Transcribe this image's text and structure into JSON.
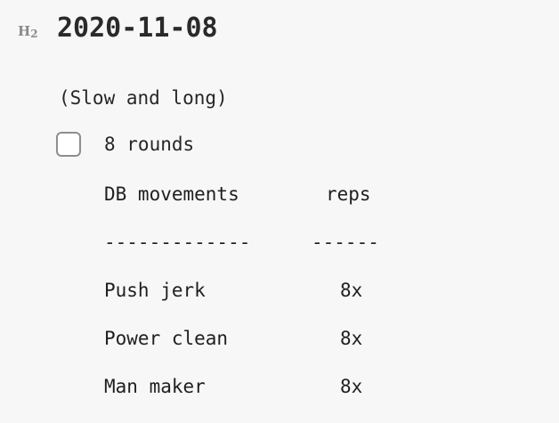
{
  "heading": {
    "marker": "H",
    "marker_sub": "2",
    "title": "2020-11-08"
  },
  "note": "(Slow and long)",
  "task": {
    "checked": false,
    "label": "8 rounds"
  },
  "table": {
    "header": [
      "DB movements",
      "reps"
    ],
    "separator": [
      "-------------",
      "------"
    ],
    "rows": [
      [
        "Push jerk",
        "8x"
      ],
      [
        "Power clean",
        "8x"
      ],
      [
        "Man maker",
        "8x"
      ]
    ]
  }
}
